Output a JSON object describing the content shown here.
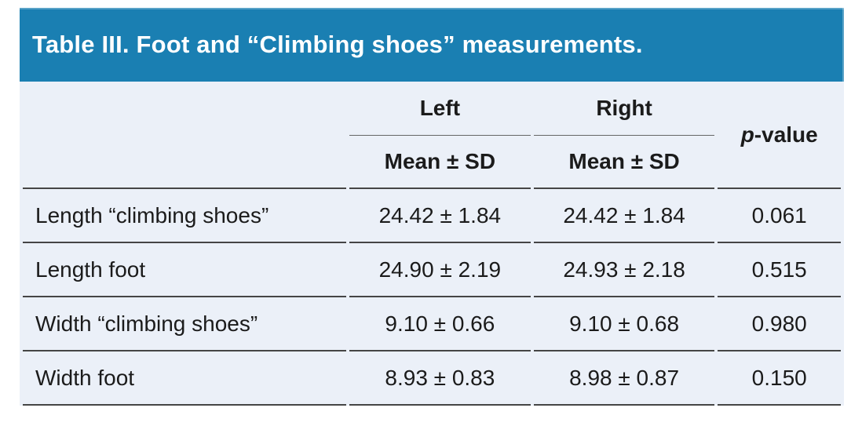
{
  "title": "Table III. Foot and “Climbing shoes” measurements.",
  "header": {
    "left": "Left",
    "right": "Right",
    "subheader": "Mean ± SD",
    "pvalue_italic": "p",
    "pvalue_rest": "-value"
  },
  "rows": [
    {
      "label": "Length “climbing shoes”",
      "left": "24.42 ± 1.84",
      "right": "24.42 ± 1.84",
      "p": "0.061"
    },
    {
      "label": "Length foot",
      "left": "24.90 ± 2.19",
      "right": "24.93 ± 2.18",
      "p": "0.515"
    },
    {
      "label": "Width “climbing shoes”",
      "left": "9.10 ± 0.66",
      "right": "9.10 ± 0.68",
      "p": "0.980"
    },
    {
      "label": "Width foot",
      "left": "8.93 ± 0.83",
      "right": "8.98 ± 0.87",
      "p": "0.150"
    }
  ],
  "colors": {
    "header_bg": "#1A7FB2",
    "table_bg": "#EBF0F8",
    "line": "#454545",
    "subline": "#666666",
    "text": "#1B1B1B"
  }
}
